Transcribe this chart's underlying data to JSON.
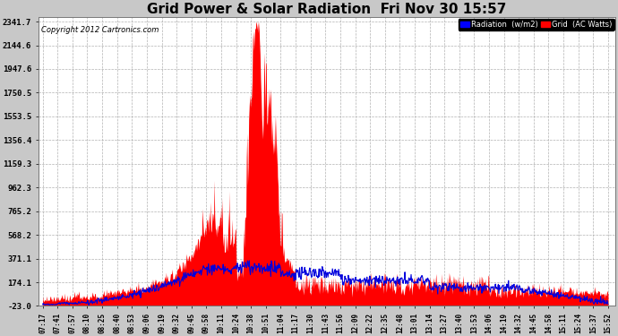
{
  "title": "Grid Power & Solar Radiation  Fri Nov 30 15:57",
  "copyright": "Copyright 2012 Cartronics.com",
  "yticks": [
    -23.0,
    174.1,
    371.1,
    568.2,
    765.2,
    962.3,
    1159.3,
    1356.4,
    1553.5,
    1750.5,
    1947.6,
    2144.6,
    2341.7
  ],
  "ylim": [
    -23.0,
    2380.0
  ],
  "background_color": "#c8c8c8",
  "plot_bg_color": "#ffffff",
  "grid_color": "#aaaaaa",
  "title_fontsize": 11,
  "legend_radiation_color": "#0000ff",
  "legend_grid_color": "#ff0000",
  "radiation_line_color": "#0000dd",
  "grid_fill_color": "#ff0000",
  "xtick_labels": [
    "07:17",
    "07:41",
    "07:57",
    "08:10",
    "08:25",
    "08:40",
    "08:53",
    "09:06",
    "09:19",
    "09:32",
    "09:45",
    "09:58",
    "10:11",
    "10:24",
    "10:38",
    "10:51",
    "11:04",
    "11:17",
    "11:30",
    "11:43",
    "11:56",
    "12:09",
    "12:22",
    "12:35",
    "12:48",
    "13:01",
    "13:14",
    "13:27",
    "13:40",
    "13:53",
    "14:06",
    "14:19",
    "14:32",
    "14:45",
    "14:58",
    "15:11",
    "15:24",
    "15:37",
    "15:52"
  ]
}
